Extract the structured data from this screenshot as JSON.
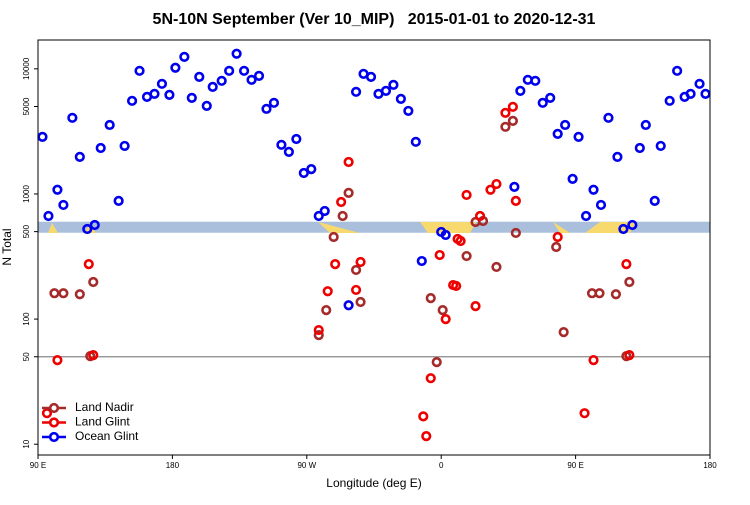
{
  "chart_data": {
    "type": "scatter",
    "title": "5N-10N September (Ver 10_MIP)   2015-01-01 to 2020-12-31",
    "x_label": "Longitude (deg E)",
    "y_label": "N Total",
    "xlim": [
      90,
      540
    ],
    "xticks": [
      {
        "value": 90,
        "label": "90 E"
      },
      180,
      {
        "value": 270,
        "label": "90 W"
      },
      {
        "value": 360,
        "label": "0"
      },
      {
        "value": 450,
        "label": "90 E"
      },
      {
        "value": 540,
        "label": "180"
      }
    ],
    "ylim": [
      8.2,
      17000
    ],
    "log_y": true,
    "yticks": [
      10,
      50,
      100,
      500,
      1000,
      5000,
      10000
    ],
    "hline": 50,
    "band": [
      490,
      600
    ],
    "legend": "bottom-left",
    "series": [
      {
        "name": "Land Nadir",
        "color": "#a52a2a",
        "x": [
          101,
          107,
          118,
          125,
          127,
          278,
          283,
          288,
          294,
          298,
          303,
          306,
          353,
          357,
          361,
          377,
          383,
          388,
          397,
          403,
          408,
          410,
          437,
          442,
          461,
          466,
          477,
          484,
          486
        ],
        "values": [
          161,
          161,
          158,
          50.6,
          198,
          74.5,
          118,
          453,
          667,
          1020,
          247,
          137,
          147,
          45.3,
          118,
          319,
          597,
          608,
          261,
          3440,
          3840,
          488,
          377,
          78.7,
          161,
          161,
          158,
          50.6,
          198
        ]
      },
      {
        "name": "Land Glint",
        "color": "#ee0000",
        "x": [
          96,
          103,
          124,
          127,
          278,
          284,
          289,
          293,
          298,
          303,
          306,
          348,
          350,
          353,
          359,
          363,
          368,
          370,
          371,
          373,
          377,
          383,
          386,
          393,
          397,
          403,
          408,
          410,
          438,
          456,
          462,
          484,
          486
        ],
        "values": [
          17.7,
          47,
          275,
          51.5,
          81.7,
          167,
          275,
          863,
          1800,
          171,
          286,
          16.7,
          11.6,
          33.7,
          325,
          100,
          187,
          184,
          437,
          421,
          982,
          127,
          667,
          1080,
          1200,
          4450,
          4970,
          880,
          453,
          17.7,
          47,
          275,
          51.5
        ]
      },
      {
        "name": "Ocean Glint",
        "color": "#0000ee",
        "x": [
          93,
          97,
          103,
          107,
          113,
          118,
          123,
          128,
          132,
          138,
          144,
          148,
          153,
          158,
          163,
          168,
          173,
          178,
          182,
          188,
          193,
          198,
          203,
          207,
          213,
          218,
          223,
          228,
          233,
          238,
          243,
          248,
          253,
          258,
          263,
          268,
          273,
          278,
          282,
          298,
          303,
          308,
          313,
          318,
          323,
          328,
          333,
          338,
          343,
          347,
          360,
          363,
          409,
          413,
          418,
          423,
          428,
          433,
          438,
          443,
          448,
          452,
          457,
          462,
          467,
          472,
          478,
          482,
          488,
          493,
          497,
          503,
          507,
          513,
          518,
          523,
          527,
          533,
          537
        ],
        "values": [
          2860,
          667,
          1080,
          817,
          4060,
          1980,
          525,
          565,
          2330,
          3560,
          880,
          2420,
          5550,
          9640,
          5970,
          6310,
          7590,
          6190,
          10200,
          12470,
          5860,
          8630,
          5060,
          7180,
          8020,
          9640,
          13200,
          9640,
          8170,
          8790,
          4790,
          5350,
          2470,
          2170,
          2750,
          1470,
          1580,
          667,
          731,
          129,
          6550,
          9120,
          8630,
          6310,
          6670,
          7450,
          5750,
          4610,
          2610,
          291,
          497,
          470,
          1140,
          6670,
          8170,
          8020,
          5350,
          5860,
          3020,
          3560,
          1320,
          2860,
          667,
          1080,
          817,
          4060,
          1980,
          525,
          565,
          2330,
          3560,
          880,
          2420,
          5550,
          9640,
          5970,
          6310,
          7590,
          6310
        ]
      }
    ]
  }
}
